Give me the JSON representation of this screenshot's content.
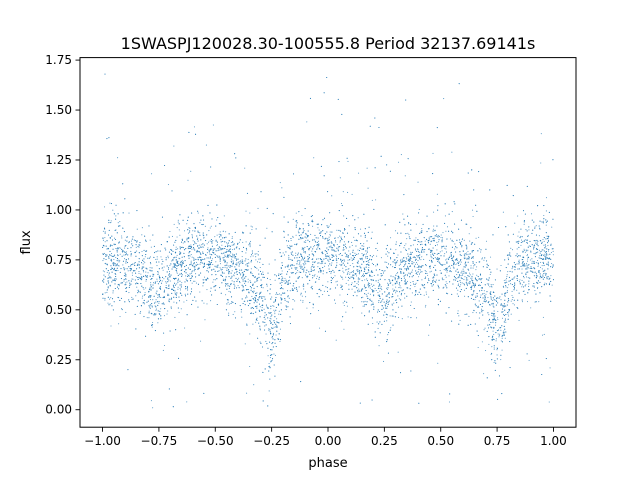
{
  "chart_data": {
    "type": "scatter",
    "title": "1SWASPJ120028.30-100555.8 Period 32137.69141s",
    "xlabel": "phase",
    "ylabel": "flux",
    "xlim": [
      -1.1,
      1.1
    ],
    "ylim": [
      -0.0875,
      1.7625
    ],
    "x_ticks": [
      -1.0,
      -0.75,
      -0.5,
      -0.25,
      0.0,
      0.25,
      0.5,
      0.75,
      1.0
    ],
    "x_tick_labels": [
      "−1.00",
      "−0.75",
      "−0.50",
      "−0.25",
      "0.00",
      "0.25",
      "0.50",
      "0.75",
      "1.00"
    ],
    "y_ticks": [
      0.0,
      0.25,
      0.5,
      0.75,
      1.0,
      1.25,
      1.5,
      1.75
    ],
    "y_tick_labels": [
      "0.00",
      "0.25",
      "0.50",
      "0.75",
      "1.00",
      "1.25",
      "1.50",
      "1.75"
    ],
    "grid": false,
    "legend": "none",
    "marker_color": "#1f77b4",
    "series": [
      {
        "x": [
          -1.0,
          -0.95,
          -0.9,
          -0.85,
          -0.8,
          -0.75,
          -0.7,
          -0.65,
          -0.6,
          -0.55,
          -0.5,
          -0.45,
          -0.4,
          -0.35,
          -0.3,
          -0.28,
          -0.26,
          -0.25,
          -0.24,
          -0.22,
          -0.2,
          -0.15,
          -0.1,
          -0.05,
          0.0,
          0.05,
          0.1,
          0.15,
          0.2,
          0.25,
          0.3,
          0.35,
          0.4,
          0.45,
          0.5,
          0.55,
          0.6,
          0.65,
          0.7,
          0.72,
          0.74,
          0.75,
          0.76,
          0.78,
          0.8,
          0.85,
          0.9,
          0.95,
          1.0
        ],
        "y": [
          0.73,
          0.74,
          0.73,
          0.69,
          0.63,
          0.58,
          0.66,
          0.73,
          0.76,
          0.76,
          0.76,
          0.74,
          0.71,
          0.66,
          0.57,
          0.5,
          0.42,
          0.38,
          0.41,
          0.5,
          0.65,
          0.74,
          0.76,
          0.76,
          0.75,
          0.74,
          0.73,
          0.69,
          0.63,
          0.58,
          0.66,
          0.73,
          0.76,
          0.76,
          0.76,
          0.74,
          0.71,
          0.66,
          0.57,
          0.5,
          0.42,
          0.38,
          0.41,
          0.5,
          0.65,
          0.74,
          0.76,
          0.76,
          0.75
        ]
      }
    ]
  }
}
